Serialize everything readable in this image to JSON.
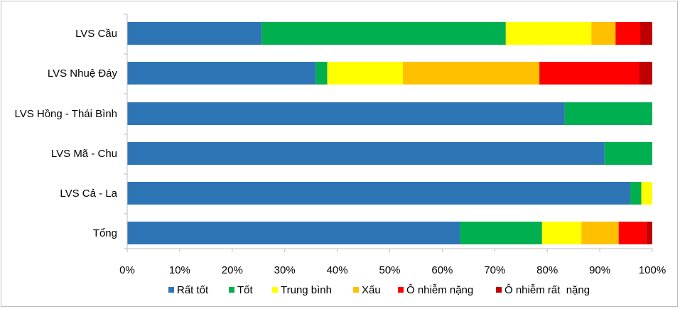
{
  "chart_data": {
    "type": "bar",
    "orientation": "horizontal",
    "stacked": "percent",
    "categories": [
      "LVS Cầu",
      "LVS Nhuệ Đáy",
      "LVS Hồng - Thái Bình",
      "LVS Mã - Chu",
      "LVS Cả - La",
      "Tổng"
    ],
    "series": [
      {
        "name": "Rất tốt",
        "color": "#2E75B6",
        "values": [
          25.6,
          35.9,
          83.3,
          90.9,
          95.8,
          63.4
        ]
      },
      {
        "name": "Tốt",
        "color": "#00B050",
        "values": [
          46.5,
          2.2,
          16.7,
          9.1,
          2.1,
          15.6
        ]
      },
      {
        "name": "Trung bình",
        "color": "#FFFF00",
        "values": [
          16.3,
          14.4,
          0,
          0,
          2.1,
          7.5
        ]
      },
      {
        "name": "Xấu",
        "color": "#FFC000",
        "values": [
          4.6,
          26.0,
          0,
          0,
          0,
          7.1
        ]
      },
      {
        "name": "Ô nhiễm nặng",
        "color": "#FF0000",
        "values": [
          4.7,
          19.0,
          0,
          0,
          0,
          5.3
        ]
      },
      {
        "name": "Ô nhiễm rất  nặng",
        "color": "#C00000",
        "values": [
          2.3,
          2.5,
          0,
          0,
          0,
          1.1
        ]
      }
    ],
    "x_ticks": [
      "0%",
      "10%",
      "20%",
      "30%",
      "40%",
      "50%",
      "60%",
      "70%",
      "80%",
      "90%",
      "100%"
    ],
    "xlim": [
      0,
      100
    ],
    "grid": false,
    "legend": "bottom"
  }
}
